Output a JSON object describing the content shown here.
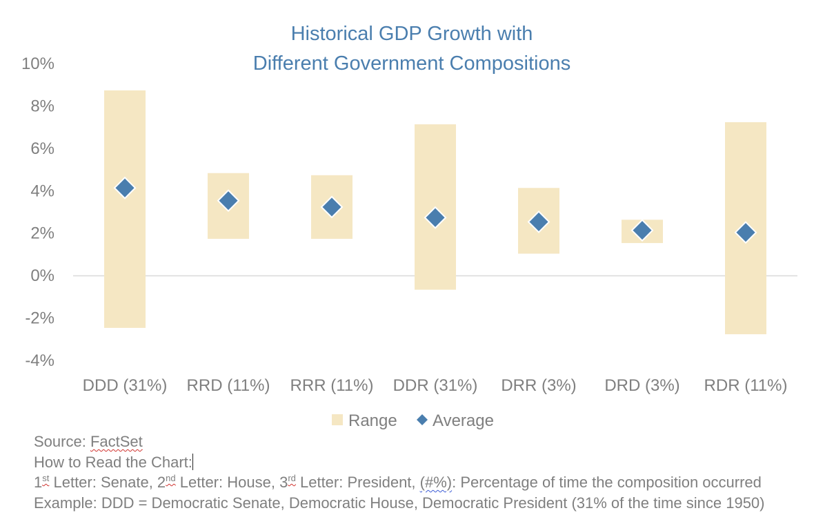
{
  "chart_data": {
    "type": "range_with_average",
    "title": [
      "Historical GDP Growth with",
      "Different Government Compositions"
    ],
    "categories": [
      "DDD (31%)",
      "RRD (11%)",
      "RRR (11%)",
      "DDR (31%)",
      "DRR (3%)",
      "DRD (3%)",
      "RDR (11%)"
    ],
    "ylim": [
      -4,
      10
    ],
    "yticks": [
      -4,
      -2,
      0,
      2,
      4,
      6,
      8,
      10
    ],
    "ytick_labels": [
      "-4%",
      "-2%",
      "0%",
      "2%",
      "4%",
      "6%",
      "8%",
      "10%"
    ],
    "series": [
      {
        "name": "Range",
        "type": "floating_bar",
        "low": [
          -2.5,
          1.7,
          1.7,
          -0.7,
          1.0,
          1.5,
          -2.8
        ],
        "high": [
          8.7,
          4.8,
          4.7,
          7.1,
          4.1,
          2.6,
          7.2
        ],
        "color": "#f5e7c3"
      },
      {
        "name": "Average",
        "type": "marker",
        "values": [
          4.1,
          3.5,
          3.2,
          2.7,
          2.5,
          2.1,
          2.0
        ],
        "color": "#4a7eae"
      }
    ],
    "grid": false,
    "legend": "bottom-center"
  },
  "notes": {
    "source_prefix": "Source: ",
    "source_name": "FactSet",
    "how_to_read": "How to Read the Chart:",
    "letters": {
      "n1": "1",
      "s1": "st",
      "t1": " Letter: Senate, ",
      "n2": "2",
      "s2": "nd",
      "t2": " Letter: House, ",
      "n3": "3",
      "s3": "rd",
      "t3": " Letter: President, ",
      "pct_token": "(#%)",
      "t4": ": Percentage of time the composition occurred"
    },
    "example": "Example: DDD = Democratic Senate, Democratic House, Democratic President (31% of the time since 1950)"
  }
}
